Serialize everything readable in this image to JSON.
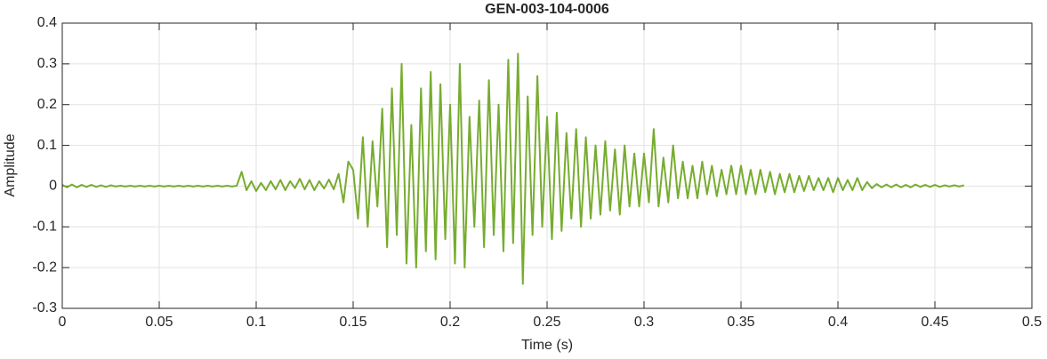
{
  "chart_data": {
    "type": "line",
    "title": "GEN-003-104-0006",
    "x_label": "Time (s)",
    "y_label": "Amplitude",
    "color": "#77ac30",
    "grid": true,
    "xlim": [
      0,
      0.5
    ],
    "xticks": [
      0,
      0.05,
      0.1,
      0.15,
      0.2,
      0.25,
      0.3,
      0.35,
      0.4,
      0.45,
      0.5
    ],
    "ylim": [
      -0.3,
      0.4
    ],
    "yticks": [
      -0.3,
      -0.2,
      -0.1,
      0,
      0.1,
      0.2,
      0.3,
      0.4
    ],
    "x": [
      0,
      0.0025,
      0.005,
      0.0075,
      0.01,
      0.0125,
      0.015,
      0.0175,
      0.02,
      0.0225,
      0.025,
      0.0275,
      0.03,
      0.0325,
      0.035,
      0.0375,
      0.04,
      0.0425,
      0.045,
      0.0475,
      0.05,
      0.0525,
      0.055,
      0.0575,
      0.06,
      0.0625,
      0.065,
      0.0675,
      0.07,
      0.0725,
      0.075,
      0.0775,
      0.08,
      0.0825,
      0.085,
      0.0875,
      0.09,
      0.0925,
      0.095,
      0.0975,
      0.1,
      0.1025,
      0.105,
      0.1075,
      0.11,
      0.1125,
      0.115,
      0.1175,
      0.12,
      0.1225,
      0.125,
      0.1275,
      0.13,
      0.1325,
      0.135,
      0.1375,
      0.14,
      0.1425,
      0.145,
      0.1475,
      0.15,
      0.1525,
      0.155,
      0.1575,
      0.16,
      0.1625,
      0.165,
      0.1675,
      0.17,
      0.1725,
      0.175,
      0.1775,
      0.18,
      0.1825,
      0.185,
      0.1875,
      0.19,
      0.1925,
      0.195,
      0.1975,
      0.2,
      0.2025,
      0.205,
      0.2075,
      0.21,
      0.2125,
      0.215,
      0.2175,
      0.22,
      0.2225,
      0.225,
      0.2275,
      0.23,
      0.2325,
      0.235,
      0.2375,
      0.24,
      0.2425,
      0.245,
      0.2475,
      0.25,
      0.2525,
      0.255,
      0.2575,
      0.26,
      0.2625,
      0.265,
      0.2675,
      0.27,
      0.2725,
      0.275,
      0.2775,
      0.28,
      0.2825,
      0.285,
      0.2875,
      0.29,
      0.2925,
      0.295,
      0.2975,
      0.3,
      0.3025,
      0.305,
      0.3075,
      0.31,
      0.3125,
      0.315,
      0.3175,
      0.32,
      0.3225,
      0.325,
      0.3275,
      0.33,
      0.3325,
      0.335,
      0.3375,
      0.34,
      0.3425,
      0.345,
      0.3475,
      0.35,
      0.3525,
      0.355,
      0.3575,
      0.36,
      0.3625,
      0.365,
      0.3675,
      0.37,
      0.3725,
      0.375,
      0.3775,
      0.38,
      0.3825,
      0.385,
      0.3875,
      0.39,
      0.3925,
      0.395,
      0.3975,
      0.4,
      0.4025,
      0.405,
      0.4075,
      0.41,
      0.4125,
      0.415,
      0.4175,
      0.42,
      0.4225,
      0.425,
      0.4275,
      0.43,
      0.4325,
      0.435,
      0.4375,
      0.44,
      0.4425,
      0.445,
      0.4475,
      0.45,
      0.4525,
      0.455,
      0.4575,
      0.46,
      0.4625,
      0.465
    ],
    "values": [
      0.003,
      -0.003,
      0.004,
      -0.003,
      0.003,
      -0.002,
      0.003,
      -0.002,
      0.002,
      -0.002,
      0.002,
      -0.001,
      0.001,
      -0.001,
      0.001,
      -0.001,
      0.001,
      -0.001,
      0.001,
      -0.001,
      0.001,
      -0.001,
      0.001,
      -0.001,
      0.001,
      -0.001,
      0.001,
      -0.001,
      0.001,
      -0.001,
      0.001,
      -0.001,
      0.001,
      -0.001,
      0.001,
      -0.001,
      0.001,
      0.035,
      -0.01,
      0.012,
      -0.012,
      0.008,
      -0.01,
      0.012,
      -0.008,
      0.015,
      -0.01,
      0.012,
      -0.005,
      0.018,
      -0.008,
      0.015,
      -0.01,
      0.012,
      -0.006,
      0.016,
      -0.008,
      0.03,
      -0.04,
      0.06,
      0.04,
      -0.08,
      0.12,
      -0.1,
      0.11,
      -0.05,
      0.19,
      -0.15,
      0.24,
      -0.12,
      0.3,
      -0.19,
      0.15,
      -0.2,
      0.24,
      -0.16,
      0.28,
      -0.18,
      0.25,
      -0.13,
      0.2,
      -0.19,
      0.3,
      -0.2,
      0.17,
      -0.1,
      0.21,
      -0.15,
      0.26,
      -0.12,
      0.2,
      -0.16,
      0.31,
      -0.14,
      0.325,
      -0.24,
      0.22,
      -0.12,
      0.27,
      -0.1,
      0.17,
      -0.13,
      0.18,
      -0.11,
      0.13,
      -0.08,
      0.14,
      -0.1,
      0.12,
      -0.08,
      0.1,
      -0.07,
      0.11,
      -0.06,
      0.09,
      -0.07,
      0.1,
      -0.05,
      0.08,
      -0.05,
      0.08,
      -0.04,
      0.14,
      -0.05,
      0.07,
      -0.04,
      0.1,
      -0.03,
      0.06,
      -0.03,
      0.05,
      -0.03,
      0.06,
      -0.02,
      0.05,
      -0.025,
      0.04,
      -0.02,
      0.05,
      -0.02,
      0.05,
      -0.02,
      0.04,
      -0.02,
      0.04,
      -0.015,
      0.035,
      -0.02,
      0.03,
      -0.015,
      0.03,
      -0.015,
      0.025,
      -0.012,
      0.025,
      -0.01,
      0.02,
      -0.01,
      0.02,
      -0.015,
      0.02,
      -0.01,
      0.015,
      -0.01,
      0.02,
      -0.01,
      0.01,
      -0.005,
      0.005,
      -0.003,
      0.004,
      -0.003,
      0.004,
      -0.003,
      0.003,
      -0.003,
      0.004,
      -0.002,
      0.003,
      -0.002,
      0.003,
      -0.002,
      0.002,
      -0.001,
      0.002,
      -0.001,
      0.002
    ]
  }
}
